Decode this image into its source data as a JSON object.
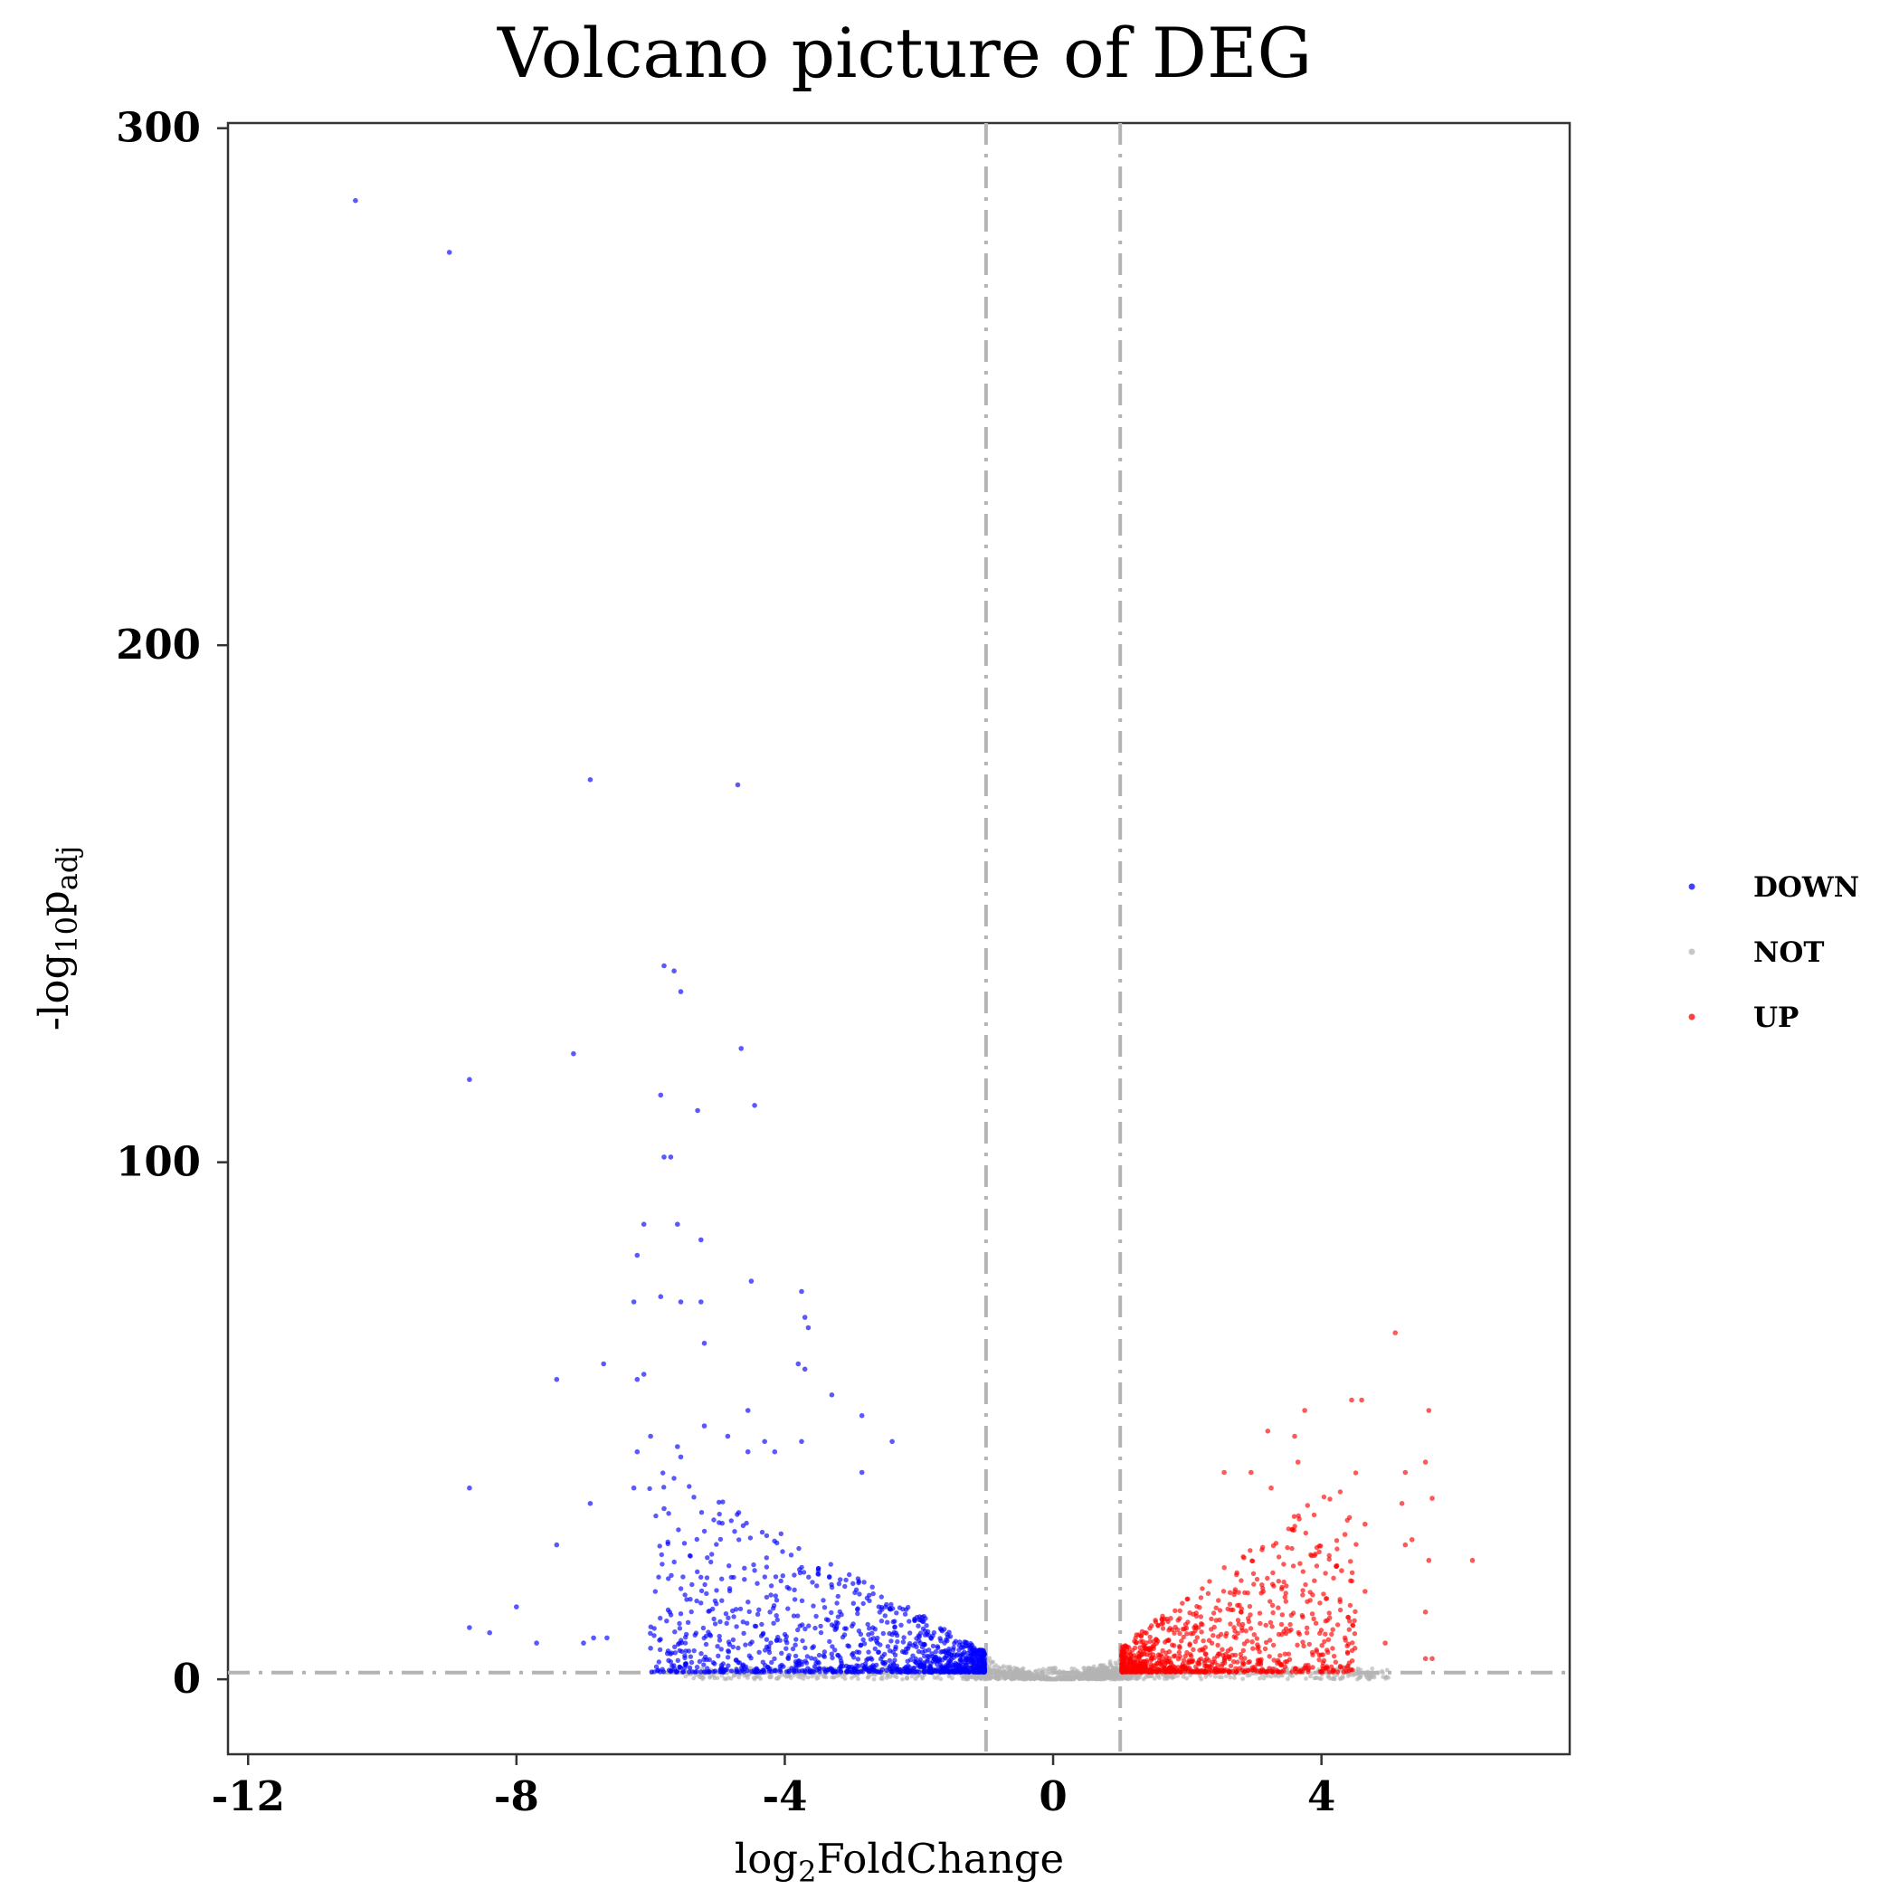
{
  "chart_data": {
    "type": "scatter",
    "title": "Volcano picture of DEG",
    "xlabel": {
      "main": "log",
      "sub": "2",
      "rest": "FoldChange"
    },
    "ylabel": {
      "main": "-log",
      "sub": "10",
      "rest": "p",
      "sub2": "adj"
    },
    "xlim": [
      -12.3,
      7.7
    ],
    "ylim": [
      -14.5,
      301
    ],
    "x_ticks": [
      -12,
      -8,
      -4,
      0,
      4
    ],
    "x_tick_labels": [
      "-12",
      "-8",
      "-4",
      "0",
      "4"
    ],
    "y_ticks": [
      0,
      100,
      200,
      300
    ],
    "y_tick_labels": [
      "0",
      "100",
      "200",
      "300"
    ],
    "thresholds": {
      "x": [
        -1,
        1
      ],
      "y": 1.3
    },
    "grid": false,
    "legend_position": "right",
    "colors": {
      "DOWN": "#0000ff",
      "NOT": "#b4b4b4",
      "UP": "#ff0000",
      "threshold_line": "#b4b4b4"
    },
    "series": [
      {
        "name": "DOWN",
        "points": [
          [
            -10.4,
            286
          ],
          [
            -9.0,
            276
          ],
          [
            -6.9,
            174
          ],
          [
            -4.7,
            173
          ],
          [
            -8.7,
            116
          ],
          [
            -5.8,
            138
          ],
          [
            -5.65,
            137
          ],
          [
            -5.55,
            133
          ],
          [
            -7.15,
            121
          ],
          [
            -4.65,
            122
          ],
          [
            -5.85,
            113
          ],
          [
            -5.3,
            110
          ],
          [
            -4.45,
            111
          ],
          [
            -5.8,
            101
          ],
          [
            -5.7,
            101
          ],
          [
            -6.1,
            88
          ],
          [
            -5.6,
            88
          ],
          [
            -5.25,
            85
          ],
          [
            -6.2,
            82
          ],
          [
            -4.5,
            77
          ],
          [
            -3.75,
            75
          ],
          [
            -5.85,
            74
          ],
          [
            -5.55,
            73
          ],
          [
            -5.25,
            73
          ],
          [
            -6.25,
            73
          ],
          [
            -3.7,
            70
          ],
          [
            -3.65,
            68
          ],
          [
            -5.2,
            65
          ],
          [
            -3.8,
            61
          ],
          [
            -3.7,
            60
          ],
          [
            -6.7,
            61
          ],
          [
            -6.1,
            59
          ],
          [
            -7.4,
            58
          ],
          [
            -6.2,
            58
          ],
          [
            -3.3,
            55
          ],
          [
            -4.55,
            52
          ],
          [
            -2.85,
            51
          ],
          [
            -5.2,
            49
          ],
          [
            -6.0,
            47
          ],
          [
            -4.85,
            47
          ],
          [
            -4.3,
            46
          ],
          [
            -3.75,
            46
          ],
          [
            -2.4,
            46
          ],
          [
            -6.2,
            44
          ],
          [
            -5.6,
            45
          ],
          [
            -4.55,
            44
          ],
          [
            -4.15,
            44
          ],
          [
            -2.85,
            40
          ],
          [
            -5.55,
            43
          ],
          [
            -6.25,
            37
          ],
          [
            -5.8,
            33
          ],
          [
            -8.7,
            37
          ],
          [
            -6.9,
            34
          ],
          [
            -7.4,
            26
          ],
          [
            -8.0,
            14
          ],
          [
            -8.7,
            10
          ],
          [
            -8.4,
            9
          ],
          [
            -7.0,
            7
          ],
          [
            -6.85,
            8
          ],
          [
            -7.7,
            7
          ],
          [
            -6.65,
            8
          ],
          [
            -6.0,
            6
          ],
          [
            -5.75,
            5
          ]
        ],
        "dense_region": {
          "x_range": [
            -6.0,
            -1.0
          ],
          "y_range": [
            1.3,
            46
          ],
          "count": 1150,
          "concentration": "near x=-1 and low y"
        }
      },
      {
        "name": "NOT",
        "dense_region": {
          "x_range": [
            -5.5,
            5.0
          ],
          "y_range": [
            0,
            6
          ],
          "count": 1600,
          "concentration": "between x=-1 and x=1, forming a valley at x=0"
        }
      },
      {
        "name": "UP",
        "points": [
          [
            5.1,
            67
          ],
          [
            4.45,
            54
          ],
          [
            4.6,
            54
          ],
          [
            5.6,
            52
          ],
          [
            3.75,
            52
          ],
          [
            3.2,
            48
          ],
          [
            3.6,
            47
          ],
          [
            5.55,
            42
          ],
          [
            3.65,
            42
          ],
          [
            2.95,
            40
          ],
          [
            2.55,
            40
          ],
          [
            5.25,
            40
          ],
          [
            3.25,
            37
          ],
          [
            5.65,
            35
          ],
          [
            5.2,
            34
          ],
          [
            4.65,
            30
          ],
          [
            4.35,
            28
          ],
          [
            5.35,
            27
          ],
          [
            5.25,
            26
          ],
          [
            5.6,
            23
          ],
          [
            6.25,
            23
          ],
          [
            4.3,
            21
          ],
          [
            4.65,
            17
          ],
          [
            5.55,
            13
          ],
          [
            4.95,
            7
          ],
          [
            4.5,
            6
          ],
          [
            5.55,
            4
          ],
          [
            5.65,
            4
          ]
        ],
        "dense_region": {
          "x_range": [
            1.0,
            4.5
          ],
          "y_range": [
            1.3,
            40
          ],
          "count": 900,
          "concentration": "near x=1 and low y"
        }
      }
    ]
  }
}
